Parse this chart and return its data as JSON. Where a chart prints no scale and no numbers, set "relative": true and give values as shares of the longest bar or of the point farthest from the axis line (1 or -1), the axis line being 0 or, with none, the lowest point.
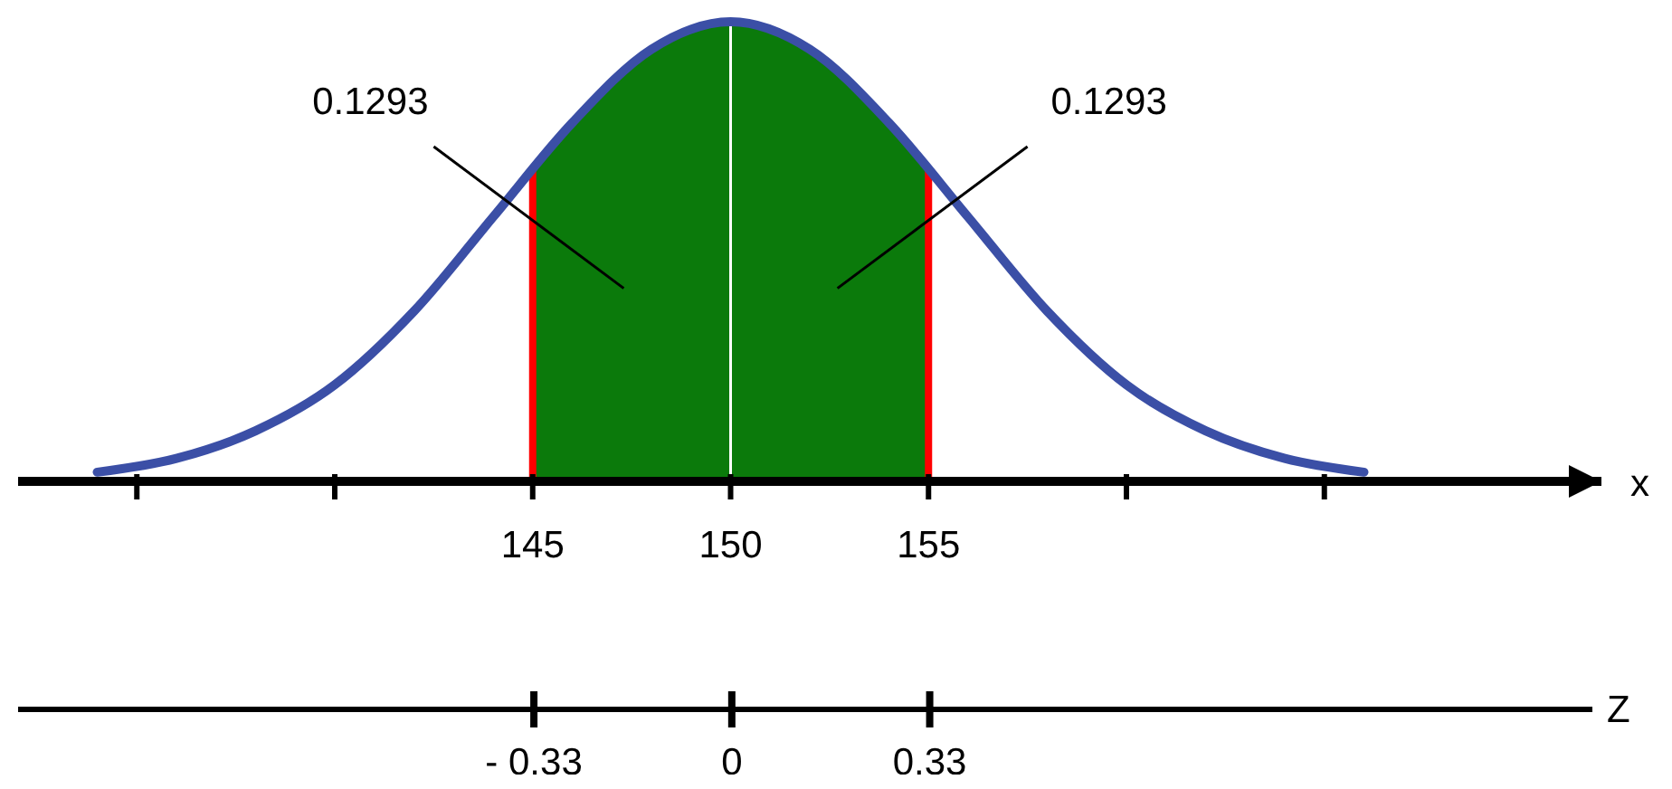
{
  "chart_data": {
    "type": "line",
    "relative": true,
    "xlabel": "x",
    "x2label": "Z",
    "xlim": [
      132,
      172
    ],
    "xticks": [
      {
        "value": 135,
        "label": null
      },
      {
        "value": 140,
        "label": null
      },
      145,
      150,
      155,
      {
        "value": 160,
        "label": null
      },
      {
        "value": 165,
        "label": null
      }
    ],
    "x2lim": [
      -1.19,
      1.45
    ],
    "x2ticks": [
      {
        "value": -0.33,
        "label": "- 0.33"
      },
      0,
      0.33
    ],
    "series": [
      {
        "type": "area",
        "color": "#0b7a0b",
        "x": [
          145,
          146,
          148,
          150,
          152,
          154,
          155
        ],
        "values": [
          0.68,
          0.78,
          0.94,
          1,
          0.94,
          0.78,
          0.68
        ]
      },
      {
        "color": "#3b4fa6",
        "x": [
          134,
          136,
          138,
          140,
          142,
          144,
          146,
          148,
          150,
          152,
          154,
          156,
          158,
          160,
          162,
          164,
          166
        ],
        "values": [
          0.02,
          0.05,
          0.11,
          0.21,
          0.37,
          0.575,
          0.78,
          0.94,
          1,
          0.94,
          0.78,
          0.575,
          0.37,
          0.21,
          0.11,
          0.05,
          0.02
        ]
      }
    ],
    "ref_lines": [
      {
        "axis": "x",
        "value": 145,
        "color": "#ff0000"
      },
      {
        "axis": "x",
        "value": 150,
        "color": "#ffffff"
      },
      {
        "axis": "x",
        "value": 155,
        "color": "#ff0000"
      }
    ],
    "annotations": [
      "0.1293",
      "0.1293"
    ]
  }
}
